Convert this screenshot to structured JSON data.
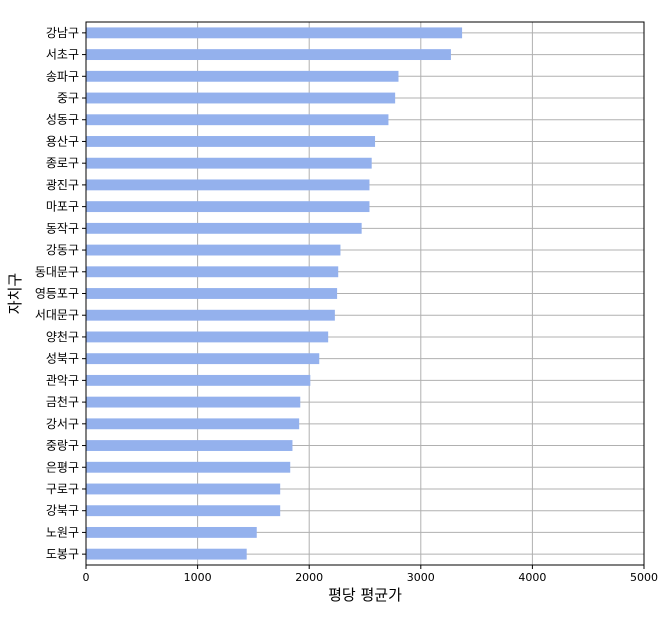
{
  "chart_data": {
    "type": "bar",
    "orientation": "horizontal",
    "title": "",
    "xlabel": "평당 평균가",
    "ylabel": "자치구",
    "xlim": [
      0,
      5000
    ],
    "xticks": [
      0,
      1000,
      2000,
      3000,
      4000,
      5000
    ],
    "grid": true,
    "bar_color": "#94b1ed",
    "categories": [
      "강남구",
      "서초구",
      "송파구",
      "중구",
      "성동구",
      "용산구",
      "종로구",
      "광진구",
      "마포구",
      "동작구",
      "강동구",
      "동대문구",
      "영등포구",
      "서대문구",
      "양천구",
      "성북구",
      "관악구",
      "금천구",
      "강서구",
      "중랑구",
      "은평구",
      "구로구",
      "강북구",
      "노원구",
      "도봉구"
    ],
    "values": [
      3370,
      3270,
      2800,
      2770,
      2710,
      2590,
      2560,
      2540,
      2540,
      2470,
      2280,
      2260,
      2250,
      2230,
      2170,
      2090,
      2010,
      1920,
      1910,
      1850,
      1830,
      1740,
      1740,
      1530,
      1440
    ]
  }
}
